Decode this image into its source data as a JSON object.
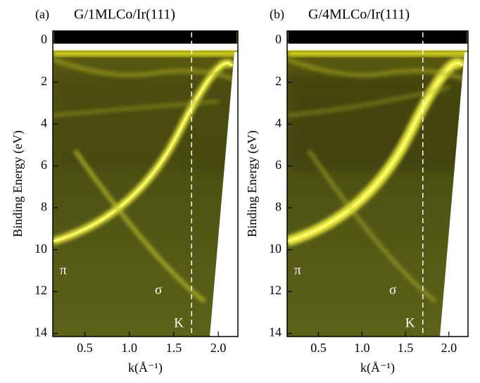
{
  "chart_data": [
    {
      "type": "heatmap",
      "panel_label": "(a)",
      "title": "G/1MLCo/Ir(111)",
      "x_label": "k(Å⁻¹)",
      "y_label": "Binding Energy (eV)",
      "xlim": [
        0.14,
        2.22
      ],
      "xticks": [
        0.5,
        {
          "value": 1,
          "label": "1.0"
        },
        1.5,
        {
          "value": 2,
          "label": "2.0"
        }
      ],
      "ylim": [
        -0.45,
        14.15
      ],
      "yticks": [
        0,
        2,
        4,
        6,
        8,
        10,
        12,
        14
      ],
      "y_inverted": true,
      "vlines": [
        1.7
      ],
      "annotations": [
        "π",
        "σ",
        "K"
      ]
    },
    {
      "type": "heatmap",
      "panel_label": "(b)",
      "title": "G/4MLCo/Ir(111)",
      "x_label": "k(Å⁻¹)",
      "y_label": "Binding Energy (eV)",
      "xlim": [
        0.14,
        2.22
      ],
      "xticks": [
        0.5,
        {
          "value": 1,
          "label": "1.0"
        },
        1.5,
        {
          "value": 2,
          "label": "2.0"
        }
      ],
      "ylim": [
        -0.45,
        14.15
      ],
      "yticks": [
        0,
        2,
        4,
        6,
        8,
        10,
        12,
        14
      ],
      "y_inverted": true,
      "vlines": [
        1.7
      ],
      "annotations": [
        "π",
        "σ",
        "K"
      ]
    }
  ]
}
